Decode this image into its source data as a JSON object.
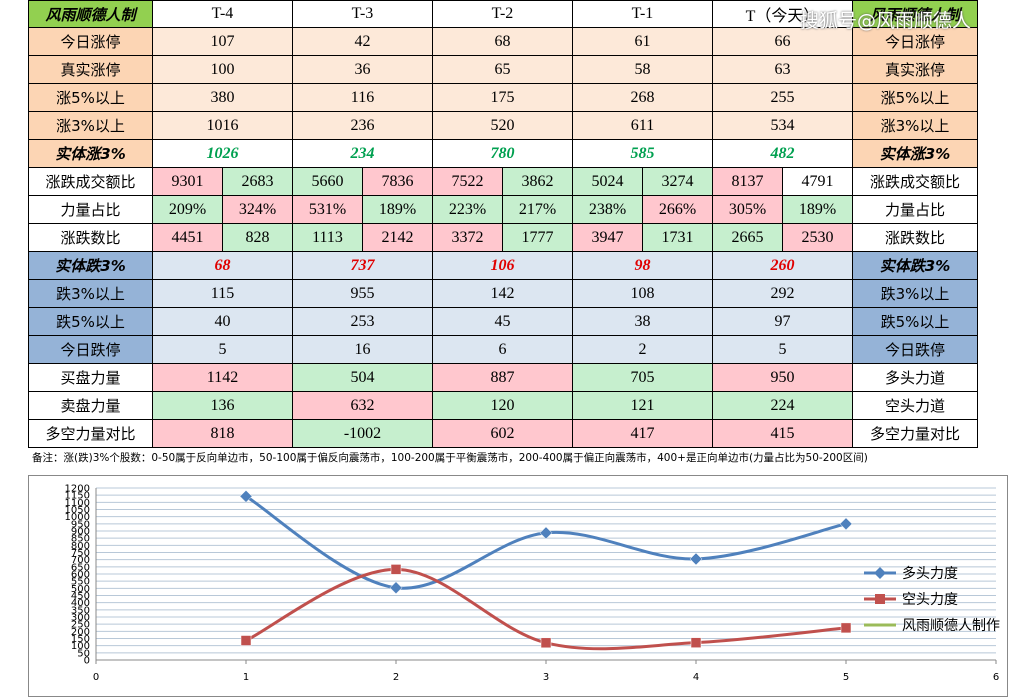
{
  "watermark": "搜狐号@风雨顺德人",
  "table": {
    "header": [
      "风雨顺德人制",
      "T-4",
      "T-3",
      "T-2",
      "T-1",
      "T（今天）",
      "风雨顺德人制"
    ],
    "rows": [
      {
        "label": "今日涨停",
        "right_label": "今日涨停",
        "label_bg": "#fcd5b4",
        "bg": "#fde9d9",
        "values": [
          107,
          42,
          68,
          61,
          66
        ]
      },
      {
        "label": "真实涨停",
        "right_label": "真实涨停",
        "label_bg": "#fcd5b4",
        "bg": "#fde9d9",
        "values": [
          100,
          36,
          65,
          58,
          63
        ]
      },
      {
        "label": "涨5%以上",
        "right_label": "涨5%以上",
        "label_bg": "#fcd5b4",
        "bg": "#fde9d9",
        "values": [
          380,
          116,
          175,
          268,
          255
        ]
      },
      {
        "label": "涨3%以上",
        "right_label": "涨3%以上",
        "label_bg": "#fcd5b4",
        "bg": "#fde9d9",
        "values": [
          1016,
          236,
          520,
          611,
          534
        ]
      },
      {
        "label": "实体涨3%",
        "right_label": "实体涨3%",
        "label_bg": "#fcd5b4",
        "bg": "#ffffff",
        "color": "#00a050",
        "emphasis": true,
        "values": [
          1026,
          234,
          780,
          585,
          482
        ]
      },
      {
        "label": "涨跌成交额比",
        "right_label": "涨跌成交额比",
        "label_bg": "#ffffff",
        "values": [
          [
            9301,
            2683
          ],
          [
            5660,
            7836
          ],
          [
            7522,
            3862
          ],
          [
            5024,
            3274
          ],
          [
            8137,
            4791
          ]
        ],
        "cell_bg": [
          [
            "#ffc7ce",
            "#c6efce"
          ],
          [
            "#c6efce",
            "#ffc7ce"
          ],
          [
            "#ffc7ce",
            "#c6efce"
          ],
          [
            "#c6efce",
            "#c6efce"
          ],
          [
            "#ffc7ce",
            "#ffffff"
          ]
        ]
      },
      {
        "label": "力量占比",
        "right_label": "力量占比",
        "label_bg": "#ffffff",
        "values": [
          [
            "209%",
            "324%"
          ],
          [
            "531%",
            "189%"
          ],
          [
            "223%",
            "217%"
          ],
          [
            "238%",
            "266%"
          ],
          [
            "305%",
            "189%"
          ]
        ],
        "cell_bg": [
          [
            "#c6efce",
            "#ffc7ce"
          ],
          [
            "#ffc7ce",
            "#c6efce"
          ],
          [
            "#c6efce",
            "#c6efce"
          ],
          [
            "#c6efce",
            "#ffc7ce"
          ],
          [
            "#ffc7ce",
            "#c6efce"
          ]
        ]
      },
      {
        "label": "涨跌数比",
        "right_label": "涨跌数比",
        "label_bg": "#ffffff",
        "values": [
          [
            4451,
            828
          ],
          [
            1113,
            2142
          ],
          [
            3372,
            1777
          ],
          [
            3947,
            1731
          ],
          [
            2665,
            2530
          ]
        ],
        "cell_bg": [
          [
            "#ffc7ce",
            "#c6efce"
          ],
          [
            "#c6efce",
            "#ffc7ce"
          ],
          [
            "#ffc7ce",
            "#c6efce"
          ],
          [
            "#ffc7ce",
            "#c6efce"
          ],
          [
            "#c6efce",
            "#ffc7ce"
          ]
        ]
      },
      {
        "label": "实体跌3%",
        "right_label": "实体跌3%",
        "label_bg": "#95b3d7",
        "bg": "#dce6f1",
        "color": "#e00000",
        "emphasis": true,
        "values": [
          68,
          737,
          106,
          98,
          260
        ]
      },
      {
        "label": "跌3%以上",
        "right_label": "跌3%以上",
        "label_bg": "#95b3d7",
        "bg": "#dce6f1",
        "values": [
          115,
          955,
          142,
          108,
          292
        ]
      },
      {
        "label": "跌5%以上",
        "right_label": "跌5%以上",
        "label_bg": "#95b3d7",
        "bg": "#dce6f1",
        "values": [
          40,
          253,
          45,
          38,
          97
        ]
      },
      {
        "label": "今日跌停",
        "right_label": "今日跌停",
        "label_bg": "#95b3d7",
        "bg": "#dce6f1",
        "values": [
          5,
          16,
          6,
          2,
          5
        ]
      },
      {
        "label": "买盘力量",
        "right_label": "多头力道",
        "label_bg": "#ffffff",
        "values": [
          1142,
          504,
          887,
          705,
          950
        ],
        "cell_bg": [
          "#ffc7ce",
          "#c6efce",
          "#ffc7ce",
          "#c6efce",
          "#ffc7ce"
        ]
      },
      {
        "label": "卖盘力量",
        "right_label": "空头力道",
        "label_bg": "#ffffff",
        "values": [
          136,
          632,
          120,
          121,
          224
        ],
        "cell_bg": [
          "#c6efce",
          "#ffc7ce",
          "#c6efce",
          "#c6efce",
          "#c6efce"
        ]
      },
      {
        "label": "多空力量对比",
        "right_label": "多空力量对比",
        "label_bg": "#ffffff",
        "values": [
          818,
          -1002,
          602,
          417,
          415
        ],
        "cell_bg": [
          "#ffc7ce",
          "#c6efce",
          "#ffc7ce",
          "#ffc7ce",
          "#ffc7ce"
        ]
      }
    ]
  },
  "note": "备注：涨(跌)3%个股数：0-50属于反向单边市，50-100属于偏反向震荡市，100-200属于平衡震荡市，200-400属于偏正向震荡市，400+是正向单边市(力量占比为50-200区间)",
  "chart_data": {
    "type": "line",
    "x": [
      1,
      2,
      3,
      4,
      5
    ],
    "series": [
      {
        "name": "多头力度",
        "color": "#4f81bd",
        "marker": "diamond",
        "values": [
          1142,
          504,
          887,
          705,
          950
        ]
      },
      {
        "name": "空头力度",
        "color": "#c0504d",
        "marker": "square",
        "values": [
          136,
          632,
          120,
          121,
          224
        ]
      },
      {
        "name": "风雨顺德人制作",
        "color": "#9bbb59",
        "values": [
          null,
          null,
          null,
          null,
          null
        ]
      }
    ],
    "xlim": [
      0,
      6
    ],
    "xticks": [
      0,
      1,
      2,
      3,
      4,
      5,
      6
    ],
    "ylim": [
      0,
      1200
    ],
    "yticks": [
      0,
      50,
      100,
      150,
      200,
      250,
      300,
      350,
      400,
      450,
      500,
      550,
      600,
      650,
      700,
      750,
      800,
      850,
      900,
      950,
      1000,
      1050,
      1100,
      1150,
      1200
    ],
    "grid": true,
    "legend": "right"
  }
}
